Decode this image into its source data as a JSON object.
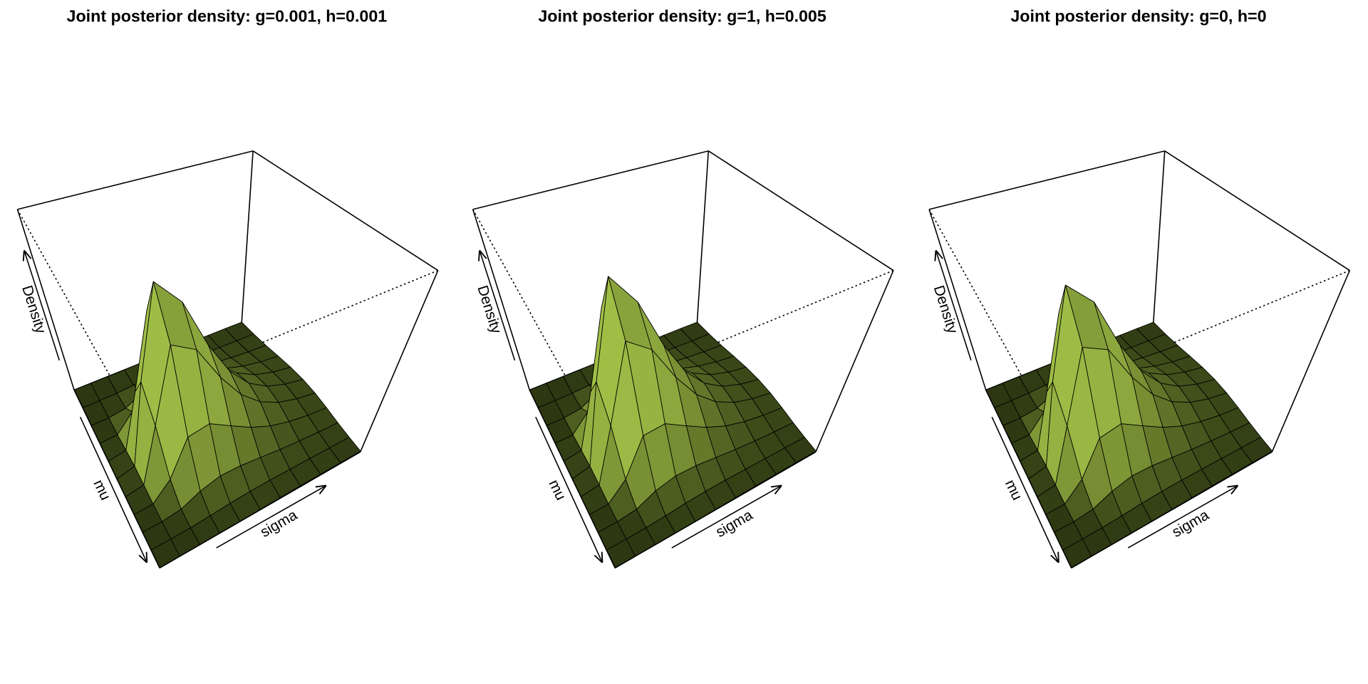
{
  "chart_data": [
    {
      "type": "surface",
      "title": "Joint posterior density: g=0.001, h=0.001",
      "xlabel": "mu",
      "ylabel": "sigma",
      "zlabel": "Density",
      "color": "#a8c84a",
      "xlim": [
        0,
        1
      ],
      "ylim": [
        0,
        1
      ],
      "zlim": [
        0,
        1
      ],
      "x": [
        0,
        0.1,
        0.2,
        0.3,
        0.4,
        0.5,
        0.6,
        0.7,
        0.8,
        0.9,
        1
      ],
      "y": [
        0,
        0.1,
        0.2,
        0.3,
        0.4,
        0.5,
        0.6,
        0.7,
        0.8,
        0.9,
        1
      ],
      "z": [
        [
          0,
          0,
          0,
          0,
          0,
          0,
          0,
          0,
          0,
          0,
          0
        ],
        [
          0,
          0,
          0,
          0.002,
          0.012,
          0.02,
          0.012,
          0.002,
          0,
          0,
          0
        ],
        [
          0,
          0.001,
          0.011,
          0.086,
          0.297,
          0.45,
          0.297,
          0.086,
          0.011,
          0.001,
          0
        ],
        [
          0,
          0.006,
          0.054,
          0.27,
          0.704,
          0.97,
          0.704,
          0.27,
          0.054,
          0.006,
          0
        ],
        [
          0.001,
          0.014,
          0.08,
          0.288,
          0.62,
          0.8,
          0.62,
          0.288,
          0.08,
          0.014,
          0.001
        ],
        [
          0.003,
          0.018,
          0.077,
          0.217,
          0.406,
          0.5,
          0.406,
          0.217,
          0.077,
          0.018,
          0.003
        ],
        [
          0.004,
          0.019,
          0.063,
          0.15,
          0.252,
          0.3,
          0.252,
          0.15,
          0.063,
          0.019,
          0.004
        ],
        [
          0.005,
          0.017,
          0.048,
          0.1,
          0.156,
          0.18,
          0.156,
          0.1,
          0.048,
          0.017,
          0.005
        ],
        [
          0.005,
          0.015,
          0.036,
          0.067,
          0.097,
          0.11,
          0.097,
          0.067,
          0.036,
          0.015,
          0.005
        ],
        [
          0.005,
          0.012,
          0.026,
          0.045,
          0.063,
          0.07,
          0.063,
          0.045,
          0.026,
          0.012,
          0.005
        ],
        [
          0.004,
          0.01,
          0.019,
          0.031,
          0.041,
          0.045,
          0.041,
          0.031,
          0.019,
          0.01,
          0.004
        ]
      ]
    },
    {
      "type": "surface",
      "title": "Joint posterior density: g=1, h=0.005",
      "xlabel": "mu",
      "ylabel": "sigma",
      "zlabel": "Density",
      "color": "#a8c84a",
      "xlim": [
        0,
        1
      ],
      "ylim": [
        0,
        1
      ],
      "zlim": [
        0,
        1
      ],
      "x": [
        0,
        0.1,
        0.2,
        0.3,
        0.4,
        0.5,
        0.6,
        0.7,
        0.8,
        0.9,
        1
      ],
      "y": [
        0,
        0.1,
        0.2,
        0.3,
        0.4,
        0.5,
        0.6,
        0.7,
        0.8,
        0.9,
        1
      ],
      "z": [
        [
          0,
          0,
          0,
          0,
          0,
          0,
          0,
          0,
          0,
          0,
          0
        ],
        [
          0,
          0,
          0,
          0.002,
          0.012,
          0.02,
          0.012,
          0.002,
          0,
          0,
          0
        ],
        [
          0,
          0.001,
          0.011,
          0.086,
          0.297,
          0.45,
          0.297,
          0.086,
          0.011,
          0.001,
          0
        ],
        [
          0,
          0.006,
          0.056,
          0.278,
          0.726,
          1,
          0.726,
          0.278,
          0.056,
          0.006,
          0
        ],
        [
          0.001,
          0.014,
          0.08,
          0.288,
          0.62,
          0.8,
          0.62,
          0.288,
          0.08,
          0.014,
          0.001
        ],
        [
          0.003,
          0.018,
          0.077,
          0.217,
          0.406,
          0.5,
          0.406,
          0.217,
          0.077,
          0.018,
          0.003
        ],
        [
          0.004,
          0.019,
          0.063,
          0.15,
          0.252,
          0.3,
          0.252,
          0.15,
          0.063,
          0.019,
          0.004
        ],
        [
          0.005,
          0.017,
          0.048,
          0.1,
          0.156,
          0.18,
          0.156,
          0.1,
          0.048,
          0.017,
          0.005
        ],
        [
          0.005,
          0.015,
          0.036,
          0.067,
          0.097,
          0.11,
          0.097,
          0.067,
          0.036,
          0.015,
          0.005
        ],
        [
          0.005,
          0.012,
          0.026,
          0.045,
          0.063,
          0.07,
          0.063,
          0.045,
          0.026,
          0.012,
          0.005
        ],
        [
          0.004,
          0.01,
          0.019,
          0.031,
          0.041,
          0.045,
          0.041,
          0.031,
          0.019,
          0.01,
          0.004
        ]
      ]
    },
    {
      "type": "surface",
      "title": "Joint posterior density: g=0, h=0",
      "xlabel": "mu",
      "ylabel": "sigma",
      "zlabel": "Density",
      "color": "#a8c84a",
      "xlim": [
        0,
        1
      ],
      "ylim": [
        0,
        1
      ],
      "zlim": [
        0,
        1
      ],
      "x": [
        0,
        0.1,
        0.2,
        0.3,
        0.4,
        0.5,
        0.6,
        0.7,
        0.8,
        0.9,
        1
      ],
      "y": [
        0,
        0.1,
        0.2,
        0.3,
        0.4,
        0.5,
        0.6,
        0.7,
        0.8,
        0.9,
        1
      ],
      "z": [
        [
          0,
          0,
          0,
          0,
          0,
          0,
          0,
          0,
          0,
          0,
          0
        ],
        [
          0,
          0,
          0,
          0.002,
          0.012,
          0.02,
          0.012,
          0.002,
          0,
          0,
          0
        ],
        [
          0,
          0.001,
          0.011,
          0.086,
          0.297,
          0.45,
          0.297,
          0.086,
          0.011,
          0.001,
          0
        ],
        [
          0,
          0.006,
          0.053,
          0.264,
          0.69,
          0.95,
          0.69,
          0.264,
          0.053,
          0.006,
          0
        ],
        [
          0.001,
          0.014,
          0.08,
          0.288,
          0.62,
          0.8,
          0.62,
          0.288,
          0.08,
          0.014,
          0.001
        ],
        [
          0.003,
          0.018,
          0.077,
          0.217,
          0.406,
          0.5,
          0.406,
          0.217,
          0.077,
          0.018,
          0.003
        ],
        [
          0.004,
          0.019,
          0.063,
          0.15,
          0.252,
          0.3,
          0.252,
          0.15,
          0.063,
          0.019,
          0.004
        ],
        [
          0.005,
          0.017,
          0.048,
          0.1,
          0.156,
          0.18,
          0.156,
          0.1,
          0.048,
          0.017,
          0.005
        ],
        [
          0.005,
          0.015,
          0.036,
          0.067,
          0.097,
          0.11,
          0.097,
          0.067,
          0.036,
          0.015,
          0.005
        ],
        [
          0.005,
          0.012,
          0.026,
          0.045,
          0.063,
          0.07,
          0.063,
          0.045,
          0.026,
          0.012,
          0.005
        ],
        [
          0.004,
          0.01,
          0.019,
          0.031,
          0.041,
          0.045,
          0.041,
          0.031,
          0.019,
          0.01,
          0.004
        ]
      ]
    }
  ]
}
